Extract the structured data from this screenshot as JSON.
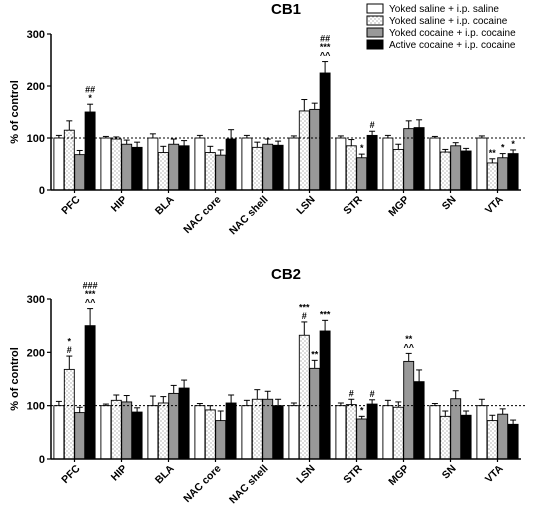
{
  "legend": [
    {
      "label": "Yoked saline + i.p. saline",
      "fill": "white"
    },
    {
      "label": "Yoked saline + i.p. cocaine",
      "fill": "dots"
    },
    {
      "label": "Yoked cocaine + i.p. cocaine",
      "fill": "#999999"
    },
    {
      "label": "Active cocaine + i.p. cocaine",
      "fill": "#000000"
    }
  ],
  "chart_data": [
    {
      "type": "bar",
      "title": "CB1",
      "ylabel": "% of control",
      "ylim": [
        0,
        300
      ],
      "yticks": [
        0,
        100,
        200,
        300
      ],
      "reference_line": 100,
      "categories": [
        "PFC",
        "HIP",
        "BLA",
        "NAC core",
        "NAC shell",
        "LSN",
        "STR",
        "MGP",
        "SN",
        "VTA"
      ],
      "series": [
        {
          "name": "Yoked saline + i.p. saline",
          "values": [
            100,
            100,
            100,
            100,
            100,
            100,
            100,
            100,
            100,
            100
          ],
          "errors": [
            5,
            3,
            8,
            5,
            5,
            4,
            4,
            5,
            3,
            4
          ]
        },
        {
          "name": "Yoked saline + i.p. cocaine",
          "values": [
            115,
            98,
            72,
            72,
            82,
            152,
            85,
            78,
            73,
            52
          ],
          "errors": [
            18,
            4,
            12,
            12,
            10,
            22,
            12,
            10,
            5,
            8
          ]
        },
        {
          "name": "Yoked cocaine + i.p. cocaine",
          "values": [
            68,
            88,
            88,
            67,
            88,
            155,
            62,
            118,
            85,
            62
          ],
          "errors": [
            8,
            8,
            10,
            10,
            10,
            12,
            7,
            15,
            6,
            8
          ]
        },
        {
          "name": "Active cocaine + i.p. cocaine",
          "values": [
            150,
            82,
            85,
            98,
            86,
            225,
            105,
            120,
            75,
            70
          ],
          "errors": [
            15,
            10,
            10,
            18,
            8,
            22,
            8,
            15,
            5,
            7
          ]
        }
      ],
      "annotations": [
        {
          "category": "PFC",
          "series": 3,
          "lines": [
            "##",
            "*"
          ]
        },
        {
          "category": "LSN",
          "series": 3,
          "lines": [
            "##",
            "***",
            "^^"
          ]
        },
        {
          "category": "STR",
          "series": 2,
          "lines": [
            "*"
          ]
        },
        {
          "category": "STR",
          "series": 3,
          "lines": [
            "#"
          ]
        },
        {
          "category": "VTA",
          "series": 1,
          "lines": [
            "**"
          ]
        },
        {
          "category": "VTA",
          "series": 2,
          "lines": [
            "*"
          ]
        },
        {
          "category": "VTA",
          "series": 3,
          "lines": [
            "*"
          ]
        }
      ]
    },
    {
      "type": "bar",
      "title": "CB2",
      "ylabel": "% of control",
      "ylim": [
        0,
        300
      ],
      "yticks": [
        0,
        100,
        200,
        300
      ],
      "reference_line": 100,
      "categories": [
        "PFC",
        "HIP",
        "BLA",
        "NAC core",
        "NAC shell",
        "LSN",
        "STR",
        "MGP",
        "SN",
        "VTA"
      ],
      "series": [
        {
          "name": "Yoked saline + i.p. saline",
          "values": [
            100,
            100,
            100,
            100,
            100,
            100,
            100,
            100,
            100,
            100
          ],
          "errors": [
            8,
            3,
            18,
            4,
            10,
            5,
            5,
            10,
            4,
            12
          ]
        },
        {
          "name": "Yoked saline + i.p. cocaine",
          "values": [
            168,
            110,
            105,
            92,
            112,
            232,
            102,
            97,
            80,
            72
          ],
          "errors": [
            25,
            10,
            12,
            8,
            18,
            25,
            10,
            10,
            10,
            10
          ]
        },
        {
          "name": "Yoked cocaine + i.p. cocaine",
          "values": [
            87,
            107,
            123,
            72,
            112,
            170,
            75,
            183,
            113,
            84
          ],
          "errors": [
            10,
            12,
            15,
            18,
            15,
            15,
            5,
            15,
            15,
            10
          ]
        },
        {
          "name": "Active cocaine + i.p. cocaine",
          "values": [
            250,
            88,
            133,
            105,
            100,
            240,
            103,
            145,
            82,
            65
          ],
          "errors": [
            32,
            8,
            15,
            15,
            12,
            20,
            8,
            22,
            8,
            8
          ]
        }
      ],
      "annotations": [
        {
          "category": "PFC",
          "series": 1,
          "lines": [
            "*",
            "#"
          ]
        },
        {
          "category": "PFC",
          "series": 3,
          "lines": [
            "###",
            "***",
            "^^"
          ]
        },
        {
          "category": "LSN",
          "series": 1,
          "lines": [
            "***",
            "#"
          ]
        },
        {
          "category": "LSN",
          "series": 2,
          "lines": [
            "**"
          ]
        },
        {
          "category": "LSN",
          "series": 3,
          "lines": [
            "***"
          ]
        },
        {
          "category": "STR",
          "series": 1,
          "lines": [
            "#"
          ]
        },
        {
          "category": "STR",
          "series": 2,
          "lines": [
            "*"
          ]
        },
        {
          "category": "STR",
          "series": 3,
          "lines": [
            "#"
          ]
        },
        {
          "category": "MGP",
          "series": 2,
          "lines": [
            "**",
            "^^"
          ]
        }
      ]
    }
  ]
}
